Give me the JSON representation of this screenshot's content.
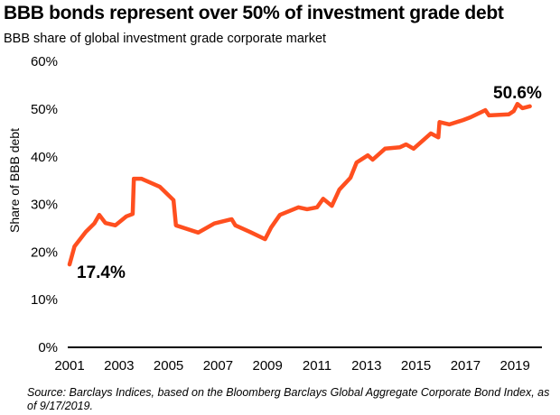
{
  "title": "BBB bonds represent over 50% of investment grade debt",
  "subtitle": "BBB share of global investment grade corporate market",
  "source": "Source: Barclays Indices, based on the Bloomberg Barclays Global Aggregate Corporate Bond Index, as of 9/17/2019.",
  "chart_data": {
    "type": "line",
    "title": "BBB bonds represent over 50% of investment grade debt",
    "subtitle": "BBB share of global investment grade corporate market",
    "xlabel": "",
    "ylabel": "Share of BBB debt",
    "xlim": [
      2001,
      2019.7
    ],
    "ylim": [
      0,
      60
    ],
    "x_ticks": [
      "2001",
      "2003",
      "2005",
      "2007",
      "2009",
      "2011",
      "2013",
      "2015",
      "2017",
      "2019"
    ],
    "y_ticks": [
      "0%",
      "10%",
      "20%",
      "30%",
      "40%",
      "50%",
      "60%"
    ],
    "grid": false,
    "line_color": "#ff4f1f",
    "annotations": [
      {
        "text": "17.4%",
        "x": 2001.0,
        "y": 17.4
      },
      {
        "text": "50.6%",
        "x": 2019.6,
        "y": 50.6
      }
    ],
    "series": [
      {
        "x": [
          2001.0,
          2001.2,
          2001.65,
          2002.0,
          2002.2,
          2002.45,
          2002.85,
          2003.3,
          2003.55,
          2003.6,
          2003.9,
          2004.65,
          2005.2,
          2005.3,
          2006.2,
          2006.85,
          2007.55,
          2007.7,
          2008.3,
          2008.9,
          2009.15,
          2009.5,
          2010.25,
          2010.6,
          2011.0,
          2011.25,
          2011.6,
          2011.9,
          2012.35,
          2012.6,
          2013.05,
          2013.25,
          2013.75,
          2014.35,
          2014.6,
          2014.9,
          2015.6,
          2015.9,
          2015.95,
          2016.35,
          2016.9,
          2017.2,
          2017.8,
          2017.95,
          2018.75,
          2018.95,
          2019.1,
          2019.3,
          2019.6
        ],
        "values": [
          17.4,
          21.2,
          24.2,
          26.0,
          27.8,
          26.1,
          25.6,
          27.5,
          28.0,
          35.4,
          35.4,
          33.7,
          30.9,
          25.6,
          24.1,
          26.0,
          26.9,
          25.6,
          24.2,
          22.7,
          25.2,
          27.8,
          29.4,
          29.0,
          29.4,
          31.2,
          29.7,
          33.1,
          35.6,
          38.8,
          40.3,
          39.4,
          41.7,
          42.0,
          42.6,
          41.7,
          44.9,
          44.1,
          47.3,
          46.8,
          47.7,
          48.3,
          49.8,
          48.7,
          48.9,
          49.6,
          51.1,
          50.2,
          50.6
        ]
      }
    ]
  }
}
